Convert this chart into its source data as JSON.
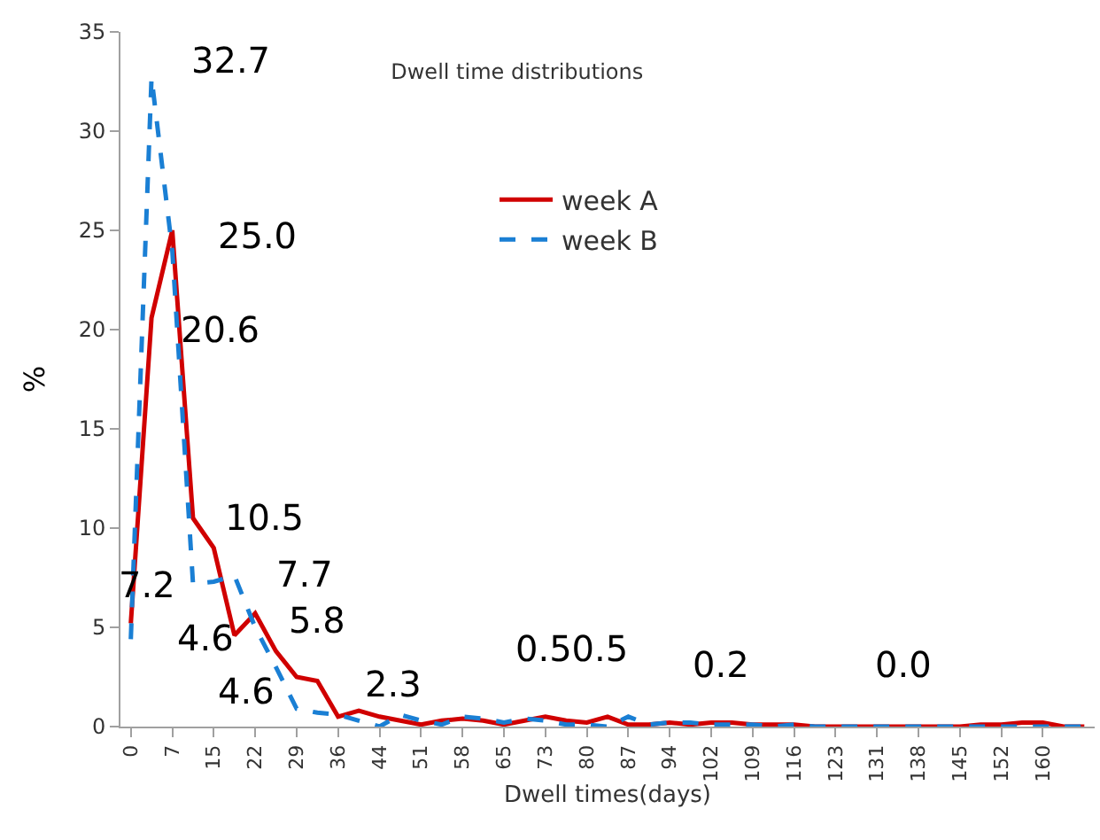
{
  "chart_data": {
    "type": "line",
    "title": "Dwell time distributions",
    "xlabel": "Dwell times(days)",
    "ylabel": "%",
    "categories": [
      "0",
      null,
      "7",
      null,
      "15",
      null,
      "22",
      null,
      "29",
      null,
      "36",
      null,
      "44",
      null,
      "51",
      null,
      "58",
      null,
      "65",
      null,
      "73",
      null,
      "80",
      null,
      "87",
      null,
      "94",
      null,
      "102",
      null,
      "109",
      null,
      "116",
      null,
      "123",
      null,
      "131",
      null,
      "138",
      null,
      "145",
      null,
      "152",
      null,
      "160",
      null,
      null
    ],
    "series": [
      {
        "name": "week A",
        "color": "#d00000",
        "line_style": "solid",
        "values": [
          5.2,
          20.6,
          25.0,
          10.5,
          9.0,
          4.6,
          5.7,
          3.8,
          2.5,
          2.3,
          0.5,
          0.8,
          0.5,
          0.3,
          0.1,
          0.3,
          0.4,
          0.3,
          0.1,
          0.3,
          0.5,
          0.3,
          0.2,
          0.5,
          0.1,
          0.1,
          0.2,
          0.1,
          0.2,
          0.2,
          0.1,
          0.1,
          0.1,
          0.0,
          0.0,
          0.0,
          0.0,
          0.0,
          0.0,
          0.0,
          0.0,
          0.1,
          0.1,
          0.2,
          0.2,
          0.0,
          0.0
        ]
      },
      {
        "name": "week B",
        "color": "#1a7fd4",
        "line_style": "dashed",
        "values": [
          4.4,
          32.7,
          24.0,
          7.2,
          7.3,
          7.6,
          5.0,
          3.0,
          0.9,
          0.7,
          0.6,
          0.3,
          0.0,
          0.6,
          0.3,
          0.1,
          0.5,
          0.4,
          0.2,
          0.4,
          0.3,
          0.1,
          0.1,
          0.0,
          0.5,
          0.1,
          0.2,
          0.2,
          0.1,
          0.1,
          0.1,
          0.0,
          0.1,
          0.0,
          0.0,
          0.0,
          0.0,
          0.0,
          0.0,
          0.0,
          0.0,
          0.0,
          0.0,
          0.0,
          0.0,
          0.0,
          0.0
        ]
      }
    ],
    "annotations": [
      "32.7",
      "25.0",
      "20.6",
      "10.5",
      "7.2",
      "7.7",
      "4.6",
      "5.8",
      "4.6",
      "2.3",
      "0.50.5",
      "0.2",
      "0.0"
    ],
    "ylim": [
      0,
      35
    ],
    "yticks": [
      0,
      5,
      10,
      15,
      20,
      25,
      30,
      35
    ],
    "legend": "top",
    "marker": "none"
  }
}
